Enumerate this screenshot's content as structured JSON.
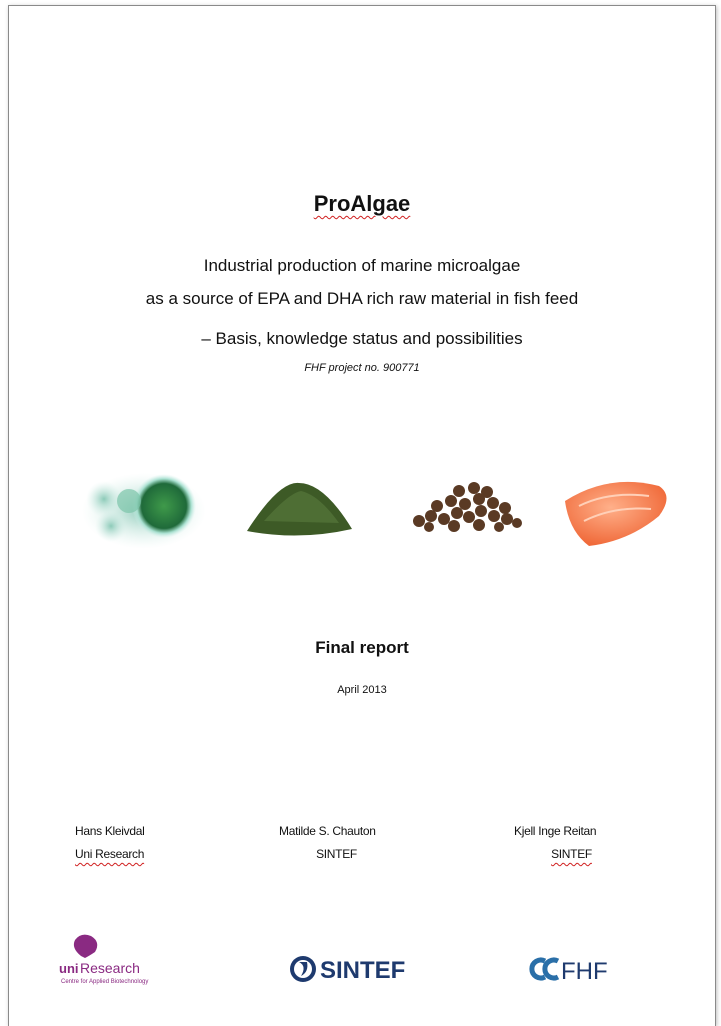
{
  "header": {
    "title": "ProAlgae",
    "subtitle": [
      "Industrial production of marine microalgae",
      "as a source of EPA and DHA rich raw material in fish feed",
      "– Basis, knowledge status and possibilities"
    ],
    "project": "FHF project no. 900771"
  },
  "report": {
    "type": "Final report",
    "date": "April 2013"
  },
  "authors": [
    {
      "name": "Hans Kleivdal",
      "org": "Uni Research"
    },
    {
      "name": "Matilde S. Chauton",
      "org": "SINTEF"
    },
    {
      "name": "Kjell Inge Reitan",
      "org": "SINTEF"
    }
  ],
  "logos": [
    {
      "prefix": "uni",
      "name": "Research",
      "tagline": "Centre for Applied Biotechnology"
    },
    {
      "name": "SINTEF"
    },
    {
      "name": "FHF"
    }
  ]
}
